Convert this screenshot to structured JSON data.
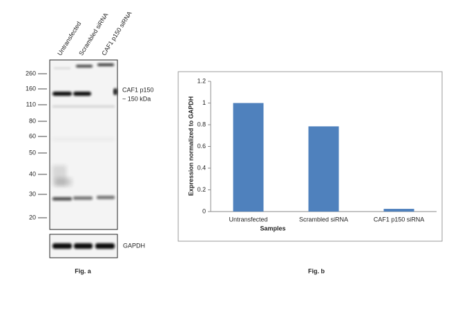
{
  "blot": {
    "lanes": [
      "Untransfected",
      "Scrambled siRNA",
      "CAF1 p150 siRNA"
    ],
    "markers": [
      "260",
      "160",
      "110",
      "80",
      "60",
      "50",
      "40",
      "30",
      "20"
    ],
    "band_label": [
      "CAF1 p150",
      "~ 150 kDa"
    ],
    "loading_label": "GAPDH",
    "caption": "Fig. a"
  },
  "chart_data": {
    "type": "bar",
    "categories": [
      "Untransfected",
      "Scrambled siRNA",
      "CAF1 p150 siRNA"
    ],
    "values": [
      1,
      0.785,
      0.025
    ],
    "color": "#4f81bd",
    "ylim": [
      0,
      1.2
    ],
    "yticks": [
      0,
      0.2,
      0.4,
      0.6,
      0.8,
      1,
      1.2
    ],
    "x_label": "Samples",
    "y_label": "Expression normalized to GAPDH",
    "caption": "Fig. b"
  }
}
